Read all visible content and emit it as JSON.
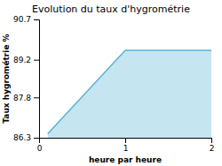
{
  "chart_data": {
    "type": "area",
    "title": "Evolution du taux d'hygrométrie",
    "xlabel": "heure par heure",
    "ylabel": "Taux hygrométrie %",
    "x": [
      0.1,
      1.0,
      2.0
    ],
    "values": [
      86.45,
      89.55,
      89.55
    ],
    "color": "#5ab4d6",
    "xlim": [
      0,
      2
    ],
    "ylim": [
      86.3,
      90.7
    ],
    "xticks": [
      0,
      1,
      2
    ],
    "yticks": [
      86.3,
      87.8,
      89.2,
      90.7
    ],
    "grid": false
  }
}
